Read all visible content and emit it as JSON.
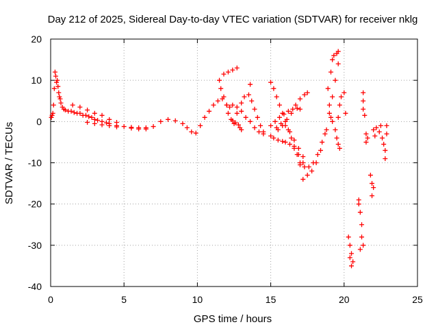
{
  "chart_data": {
    "type": "scatter",
    "title": "Day 212 of 2025, Sidereal Day-to-day VTEC variation (SDTVAR) for receiver nklg",
    "xlabel": "GPS time / hours",
    "ylabel": "SDTVAR / TECUs",
    "xlim": [
      0,
      25
    ],
    "ylim": [
      -40,
      20
    ],
    "xticks": [
      "0",
      "5",
      "10",
      "15",
      "20",
      "25"
    ],
    "yticks": [
      "20",
      "10",
      "0",
      "-10",
      "-20",
      "-30",
      "-40"
    ],
    "grid": true,
    "marker_color": "#ff0000",
    "series": [
      {
        "name": "SDTVAR",
        "points": [
          [
            0.05,
            1.0
          ],
          [
            0.1,
            1.5
          ],
          [
            0.15,
            2.0
          ],
          [
            0.2,
            4.0
          ],
          [
            0.25,
            8.0
          ],
          [
            0.3,
            12.0
          ],
          [
            0.35,
            11.0
          ],
          [
            0.4,
            9.5
          ],
          [
            0.45,
            10.0
          ],
          [
            0.5,
            8.5
          ],
          [
            0.55,
            7.0
          ],
          [
            0.6,
            6.0
          ],
          [
            0.65,
            5.5
          ],
          [
            0.7,
            4.5
          ],
          [
            0.8,
            3.5
          ],
          [
            0.9,
            3.0
          ],
          [
            1.0,
            2.8
          ],
          [
            1.2,
            2.5
          ],
          [
            1.4,
            2.5
          ],
          [
            1.6,
            2.2
          ],
          [
            1.8,
            2.0
          ],
          [
            2.0,
            2.0
          ],
          [
            2.2,
            1.5
          ],
          [
            2.4,
            1.5
          ],
          [
            2.6,
            1.2
          ],
          [
            2.8,
            1.0
          ],
          [
            3.0,
            0.5
          ],
          [
            3.2,
            0.3
          ],
          [
            3.5,
            0.0
          ],
          [
            3.8,
            -0.3
          ],
          [
            4.0,
            -0.5
          ],
          [
            4.5,
            -1.0
          ],
          [
            5.0,
            -1.2
          ],
          [
            5.5,
            -1.4
          ],
          [
            6.0,
            -1.5
          ],
          [
            6.5,
            -1.5
          ],
          [
            7.0,
            -1.2
          ],
          [
            7.5,
            0.0
          ],
          [
            8.0,
            0.5
          ],
          [
            8.5,
            0.2
          ],
          [
            9.0,
            -0.5
          ],
          [
            9.3,
            -1.5
          ],
          [
            9.6,
            -2.5
          ],
          [
            9.9,
            -2.8
          ],
          [
            10.2,
            -1.0
          ],
          [
            10.5,
            1.0
          ],
          [
            10.8,
            2.5
          ],
          [
            11.1,
            4.0
          ],
          [
            11.4,
            5.0
          ],
          [
            11.7,
            5.5
          ],
          [
            12.0,
            4.0
          ],
          [
            12.2,
            3.5
          ],
          [
            12.4,
            4.0
          ],
          [
            12.7,
            3.5
          ],
          [
            13.0,
            2.5
          ],
          [
            13.3,
            1.0
          ],
          [
            13.6,
            0.0
          ],
          [
            13.9,
            -1.5
          ],
          [
            14.2,
            -2.5
          ],
          [
            14.5,
            -3.0
          ],
          [
            2.5,
            -0.2
          ],
          [
            3.0,
            -0.5
          ],
          [
            3.5,
            -0.8
          ],
          [
            4.0,
            -1.0
          ],
          [
            4.5,
            -1.3
          ],
          [
            5.5,
            -1.6
          ],
          [
            6.0,
            -1.8
          ],
          [
            6.5,
            -1.8
          ],
          [
            1.5,
            4.0
          ],
          [
            2.0,
            3.5
          ],
          [
            2.5,
            2.8
          ],
          [
            3.0,
            2.0
          ],
          [
            3.5,
            1.5
          ],
          [
            4.0,
            0.5
          ],
          [
            4.5,
            -0.2
          ],
          [
            11.5,
            10.0
          ],
          [
            11.8,
            11.5
          ],
          [
            12.1,
            12.0
          ],
          [
            12.4,
            12.5
          ],
          [
            12.7,
            13.0
          ],
          [
            11.6,
            8.0
          ],
          [
            11.8,
            6.0
          ],
          [
            12.0,
            4.0
          ],
          [
            12.1,
            2.0
          ],
          [
            12.3,
            0.5
          ],
          [
            12.5,
            -0.5
          ],
          [
            12.7,
            2.0
          ],
          [
            13.0,
            4.5
          ],
          [
            13.2,
            6.0
          ],
          [
            13.5,
            6.5
          ],
          [
            13.7,
            5.0
          ],
          [
            13.9,
            3.0
          ],
          [
            14.1,
            1.0
          ],
          [
            14.3,
            -1.0
          ],
          [
            14.5,
            -2.5
          ],
          [
            12.8,
            -0.8
          ],
          [
            12.9,
            -1.5
          ],
          [
            13.0,
            -2.0
          ],
          [
            12.4,
            0.2
          ],
          [
            12.6,
            -0.3
          ],
          [
            13.6,
            9.0
          ],
          [
            15.0,
            9.5
          ],
          [
            15.2,
            8.0
          ],
          [
            15.4,
            6.0
          ],
          [
            15.6,
            4.0
          ],
          [
            15.8,
            2.0
          ],
          [
            16.0,
            0.0
          ],
          [
            16.2,
            -2.0
          ],
          [
            16.4,
            -4.0
          ],
          [
            16.6,
            -6.0
          ],
          [
            16.8,
            -8.0
          ],
          [
            17.0,
            -10.0
          ],
          [
            15.0,
            -3.5
          ],
          [
            15.2,
            -4.0
          ],
          [
            15.5,
            -4.5
          ],
          [
            15.8,
            -4.8
          ],
          [
            16.0,
            -5.0
          ],
          [
            16.3,
            -5.5
          ],
          [
            16.6,
            -6.5
          ],
          [
            16.9,
            -8.0
          ],
          [
            17.2,
            -10.0
          ],
          [
            15.0,
            -1.0
          ],
          [
            15.3,
            0.0
          ],
          [
            15.6,
            1.0
          ],
          [
            15.9,
            1.8
          ],
          [
            16.2,
            2.5
          ],
          [
            16.5,
            3.0
          ],
          [
            16.8,
            3.2
          ],
          [
            17.0,
            3.0
          ],
          [
            15.5,
            -2.0
          ],
          [
            15.8,
            -1.0
          ],
          [
            16.1,
            0.5
          ],
          [
            16.4,
            2.0
          ],
          [
            16.7,
            4.0
          ],
          [
            17.0,
            5.5
          ],
          [
            17.3,
            6.5
          ],
          [
            17.5,
            7.0
          ],
          [
            15.4,
            -1.5
          ],
          [
            15.7,
            -0.5
          ],
          [
            16.0,
            -1.0
          ],
          [
            16.3,
            -2.5
          ],
          [
            16.6,
            -4.5
          ],
          [
            16.9,
            -6.5
          ],
          [
            17.2,
            -8.5
          ],
          [
            17.0,
            -10.5
          ],
          [
            17.3,
            -11.0
          ],
          [
            17.6,
            -11.0
          ],
          [
            17.9,
            -10.0
          ],
          [
            18.2,
            -8.0
          ],
          [
            18.5,
            -5.0
          ],
          [
            18.8,
            -2.0
          ],
          [
            19.1,
            1.0
          ],
          [
            17.2,
            -14.0
          ],
          [
            17.5,
            -13.0
          ],
          [
            17.8,
            -12.0
          ],
          [
            18.1,
            -10.0
          ],
          [
            18.4,
            -7.0
          ],
          [
            18.7,
            -3.0
          ],
          [
            19.0,
            2.0
          ],
          [
            19.2,
            6.0
          ],
          [
            19.4,
            10.0
          ],
          [
            19.6,
            14.0
          ],
          [
            18.9,
            8.0
          ],
          [
            19.1,
            12.0
          ],
          [
            19.2,
            15.0
          ],
          [
            19.3,
            16.0
          ],
          [
            19.5,
            16.5
          ],
          [
            19.6,
            17.0
          ],
          [
            19.0,
            4.0
          ],
          [
            19.2,
            0.0
          ],
          [
            19.4,
            -2.0
          ],
          [
            19.6,
            1.0
          ],
          [
            19.7,
            4.0
          ],
          [
            19.8,
            6.0
          ],
          [
            19.5,
            -4.0
          ],
          [
            19.6,
            -5.5
          ],
          [
            19.7,
            -6.5
          ],
          [
            20.0,
            7.0
          ],
          [
            20.1,
            2.0
          ],
          [
            20.3,
            -28.0
          ],
          [
            20.4,
            -30.0
          ],
          [
            20.5,
            -32.0
          ],
          [
            20.6,
            -34.0
          ],
          [
            20.5,
            -35.0
          ],
          [
            20.4,
            -33.0
          ],
          [
            21.0,
            -19.0
          ],
          [
            21.0,
            -20.0
          ],
          [
            21.1,
            -22.0
          ],
          [
            21.2,
            -25.0
          ],
          [
            21.2,
            -28.0
          ],
          [
            21.3,
            -30.0
          ],
          [
            21.1,
            -31.0
          ],
          [
            21.3,
            7.0
          ],
          [
            21.3,
            5.0
          ],
          [
            21.3,
            3.0
          ],
          [
            21.4,
            1.5
          ],
          [
            21.5,
            -3.0
          ],
          [
            21.6,
            -4.0
          ],
          [
            21.5,
            -5.0
          ],
          [
            21.8,
            -13.0
          ],
          [
            21.9,
            -15.0
          ],
          [
            22.0,
            -16.0
          ],
          [
            21.9,
            -18.0
          ],
          [
            22.0,
            -2.0
          ],
          [
            22.1,
            -3.5
          ],
          [
            22.2,
            -1.5
          ],
          [
            22.4,
            -2.5
          ],
          [
            22.5,
            -1.0
          ],
          [
            22.6,
            -4.0
          ],
          [
            22.7,
            -5.5
          ],
          [
            22.8,
            -7.0
          ],
          [
            22.8,
            -9.0
          ],
          [
            22.9,
            -1.0
          ],
          [
            22.9,
            -3.0
          ]
        ]
      }
    ]
  }
}
